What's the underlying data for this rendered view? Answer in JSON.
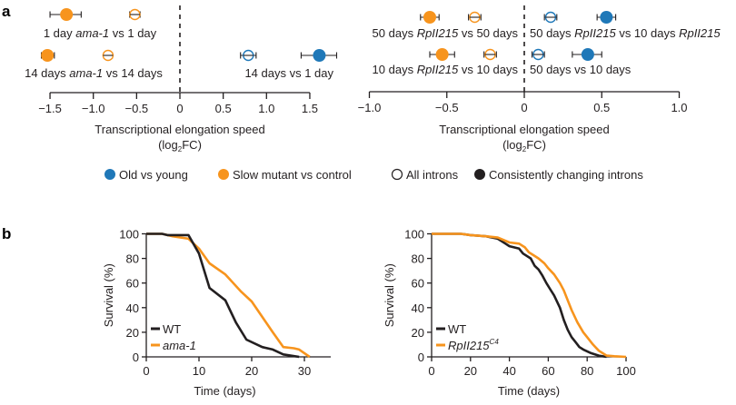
{
  "colors": {
    "old_vs_young": "#1f78b8",
    "slow_mutant": "#f7941d",
    "black": "#231f20"
  },
  "legend_a": [
    {
      "label": "Old vs young",
      "marker": "filled",
      "color_key": "old_vs_young"
    },
    {
      "label": "Slow mutant vs control",
      "marker": "filled",
      "color_key": "slow_mutant"
    },
    {
      "label": "All introns",
      "marker": "open",
      "color_key": "black"
    },
    {
      "label": "Consistently changing introns",
      "marker": "filled",
      "color_key": "black"
    }
  ],
  "chart_data": [
    {
      "panel": "a",
      "type": "scatter",
      "subtype": "forest-plot",
      "xlabel": "Transcriptional elongation speed",
      "xlabel_unit_pre": "(log",
      "xlabel_unit_sub": "2",
      "xlabel_unit_post": "FC)",
      "xlim": [
        -1.5,
        1.5
      ],
      "xticks": [
        -1.5,
        -1.0,
        -0.5,
        0,
        0.5,
        1.0,
        1.5
      ],
      "xtick_labels": [
        "−1.5",
        "−1.0",
        "−0.5",
        "0",
        "0.5",
        "1.0",
        "1.5"
      ],
      "reference_line": 0,
      "rows": [
        {
          "label_parts": [
            {
              "t": "1 day ",
              "i": false
            },
            {
              "t": "ama-1",
              "i": true
            },
            {
              "t": " vs 1 day",
              "i": false
            }
          ],
          "label_side": "left",
          "points": [
            {
              "group": "slow_mutant",
              "introns": "consistently changing",
              "value": -1.31,
              "ci": [
                -1.5,
                -1.14
              ]
            },
            {
              "group": "slow_mutant",
              "introns": "all",
              "value": -0.52,
              "ci": [
                -0.58,
                -0.46
              ]
            }
          ]
        },
        {
          "label_parts": [
            {
              "t": "14 days ",
              "i": false
            },
            {
              "t": "ama-1",
              "i": true
            },
            {
              "t": " vs 14 days",
              "i": false
            }
          ],
          "label_side": "left",
          "points": [
            {
              "group": "slow_mutant",
              "introns": "consistently changing",
              "value": -1.53,
              "ci": [
                -1.6,
                -1.45
              ]
            },
            {
              "group": "slow_mutant",
              "introns": "all",
              "value": -0.83,
              "ci": [
                -0.88,
                -0.78
              ]
            }
          ]
        },
        {
          "label_parts": [
            {
              "t": "14 days vs 1 day",
              "i": false
            }
          ],
          "label_side": "right",
          "row_index": 1,
          "points": [
            {
              "group": "old_vs_young",
              "introns": "all",
              "value": 0.79,
              "ci": [
                0.7,
                0.88
              ]
            },
            {
              "group": "old_vs_young",
              "introns": "consistently changing",
              "value": 1.61,
              "ci": [
                1.4,
                1.81
              ]
            }
          ]
        }
      ]
    },
    {
      "panel": "a",
      "type": "scatter",
      "subtype": "forest-plot",
      "xlabel": "Transcriptional elongation speed",
      "xlabel_unit_pre": "(log",
      "xlabel_unit_sub": "2",
      "xlabel_unit_post": "FC)",
      "xlim": [
        -1.0,
        1.0
      ],
      "xticks": [
        -1.0,
        -0.5,
        0,
        0.5,
        1.0
      ],
      "xtick_labels": [
        "−1.0",
        "−0.5",
        "0",
        "0.5",
        "1.0"
      ],
      "reference_line": 0,
      "rows": [
        {
          "label_parts": [
            {
              "t": "50 days ",
              "i": false
            },
            {
              "t": "RpII215",
              "i": true
            },
            {
              "t": " vs 50 days",
              "i": false
            }
          ],
          "label_side": "left",
          "row_index": 0,
          "points": [
            {
              "group": "slow_mutant",
              "introns": "consistently changing",
              "value": -0.61,
              "ci": [
                -0.67,
                -0.55
              ]
            },
            {
              "group": "slow_mutant",
              "introns": "all",
              "value": -0.32,
              "ci": [
                -0.36,
                -0.28
              ]
            }
          ]
        },
        {
          "label_parts": [
            {
              "t": "50 days ",
              "i": false
            },
            {
              "t": "RpII215",
              "i": true
            },
            {
              "t": " vs 10 days ",
              "i": false
            },
            {
              "t": "RpII215",
              "i": true
            }
          ],
          "label_side": "right",
          "row_index": 0,
          "points": [
            {
              "group": "old_vs_young",
              "introns": "all",
              "value": 0.17,
              "ci": [
                0.13,
                0.21
              ]
            },
            {
              "group": "old_vs_young",
              "introns": "consistently changing",
              "value": 0.53,
              "ci": [
                0.47,
                0.59
              ]
            }
          ]
        },
        {
          "label_parts": [
            {
              "t": "10 days ",
              "i": false
            },
            {
              "t": "RpII215",
              "i": true
            },
            {
              "t": " vs 10 days",
              "i": false
            }
          ],
          "label_side": "left",
          "row_index": 1,
          "points": [
            {
              "group": "slow_mutant",
              "introns": "consistently changing",
              "value": -0.53,
              "ci": [
                -0.61,
                -0.45
              ]
            },
            {
              "group": "slow_mutant",
              "introns": "all",
              "value": -0.22,
              "ci": [
                -0.26,
                -0.18
              ]
            }
          ]
        },
        {
          "label_parts": [
            {
              "t": "50 days vs 10 days",
              "i": false
            }
          ],
          "label_side": "right",
          "row_index": 1,
          "points": [
            {
              "group": "old_vs_young",
              "introns": "all",
              "value": 0.09,
              "ci": [
                0.05,
                0.13
              ]
            },
            {
              "group": "old_vs_young",
              "introns": "consistently changing",
              "value": 0.41,
              "ci": [
                0.31,
                0.5
              ]
            }
          ]
        }
      ]
    },
    {
      "panel": "b",
      "type": "line",
      "subtype": "survival-curve",
      "xlabel": "Time (days)",
      "ylabel": "Survival (%)",
      "xlim": [
        0,
        35
      ],
      "ylim": [
        0,
        100
      ],
      "xticks": [
        0,
        10,
        20,
        30
      ],
      "yticks": [
        0,
        20,
        40,
        60,
        80,
        100
      ],
      "legend_position": "bottom-left",
      "series": [
        {
          "name": "WT",
          "name_italic": false,
          "color_key": "black",
          "x": [
            0,
            3,
            4,
            8,
            10,
            12,
            15,
            17,
            19,
            22,
            24,
            26,
            29
          ],
          "y": [
            100,
            100,
            99,
            99,
            84,
            56,
            46,
            28,
            14,
            8,
            6,
            2,
            0
          ]
        },
        {
          "name": "ama-1",
          "name_italic": true,
          "color_key": "slow_mutant",
          "x": [
            0,
            3,
            5,
            8,
            10,
            12,
            15,
            18,
            20,
            24,
            26,
            28,
            29,
            31
          ],
          "y": [
            100,
            100,
            98,
            96,
            88,
            76,
            67,
            53,
            45,
            20,
            8,
            7,
            6,
            0
          ]
        }
      ]
    },
    {
      "panel": "b",
      "type": "line",
      "subtype": "survival-curve",
      "xlabel": "Time (days)",
      "ylabel": "Survival (%)",
      "xlim": [
        0,
        100
      ],
      "ylim": [
        0,
        100
      ],
      "xticks": [
        0,
        20,
        40,
        60,
        80,
        100
      ],
      "yticks": [
        0,
        20,
        40,
        60,
        80,
        100
      ],
      "legend_position": "bottom-left",
      "series": [
        {
          "name": "WT",
          "name_italic": false,
          "sup": "",
          "color_key": "black",
          "x": [
            0,
            15,
            20,
            28,
            34,
            38,
            40,
            45,
            47,
            51,
            53,
            55,
            57,
            59,
            61,
            63,
            66,
            68,
            70,
            72,
            74,
            76,
            78,
            82,
            86,
            90
          ],
          "y": [
            100,
            100,
            99,
            98,
            96,
            92,
            90,
            88,
            84,
            80,
            74,
            71,
            66,
            60,
            55,
            50,
            40,
            30,
            22,
            16,
            12,
            8,
            6,
            3,
            1,
            0
          ]
        },
        {
          "name": "RpII215",
          "name_italic": true,
          "sup": "C4",
          "color_key": "slow_mutant",
          "x": [
            0,
            15,
            20,
            28,
            34,
            40,
            45,
            48,
            50,
            52,
            55,
            58,
            60,
            63,
            66,
            68,
            70,
            72,
            75,
            78,
            80,
            83,
            86,
            90,
            94,
            100
          ],
          "y": [
            100,
            100,
            99,
            98,
            97,
            93,
            92,
            89,
            85,
            83,
            80,
            76,
            72,
            67,
            60,
            54,
            46,
            38,
            28,
            20,
            16,
            10,
            5,
            1,
            0.5,
            0
          ]
        }
      ]
    }
  ]
}
